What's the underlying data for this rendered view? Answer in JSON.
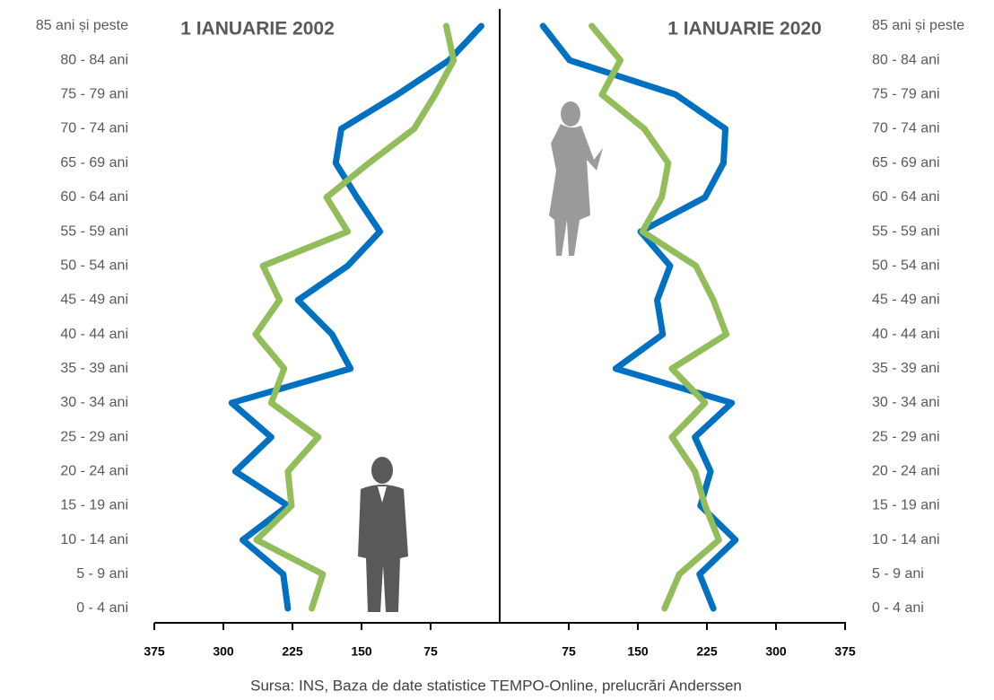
{
  "chart_data": {
    "type": "line",
    "categories": [
      "0 - 4 ani",
      "5 - 9 ani",
      "10 - 14 ani",
      "15 - 19 ani",
      "20 - 24 ani",
      "25 - 29 ani",
      "30 - 34 ani",
      "35 - 39 ani",
      "40 - 44 ani",
      "45 - 49 ani",
      "50 - 54 ani",
      "55 - 59 ani",
      "60 - 64 ani",
      "65 - 69 ani",
      "70 - 74 ani",
      "75 - 79 ani",
      "80 - 84 ani",
      "85 ani și peste"
    ],
    "series": [
      {
        "name": "1 IANUARIE 2002",
        "color": "#0070c0",
        "values_left": [
          230,
          235,
          279,
          230,
          287,
          248,
          291,
          162,
          182,
          219,
          165,
          130,
          155,
          178,
          172,
          111,
          55,
          20
        ],
        "values_right": [
          232,
          217,
          256,
          218,
          229,
          212,
          252,
          126,
          177,
          171,
          185,
          153,
          223,
          243,
          245,
          191,
          76,
          47
        ]
      },
      {
        "name": "1 IANUARIE 2020",
        "color": "#92bd5a",
        "values_left": [
          204,
          192,
          264,
          226,
          230,
          197,
          248,
          234,
          265,
          239,
          257,
          165,
          188,
          142,
          93,
          70,
          50,
          58
        ],
        "values_right": [
          179,
          195,
          238,
          223,
          212,
          187,
          223,
          187,
          246,
          232,
          213,
          155,
          176,
          183,
          157,
          111,
          131,
          100
        ]
      }
    ],
    "xlim": [
      0,
      375
    ],
    "xticks": [
      75,
      150,
      225,
      300,
      375
    ],
    "source": "Sursa: INS, Baza de date statistice TEMPO-Online, prelucrări Anderssen"
  }
}
